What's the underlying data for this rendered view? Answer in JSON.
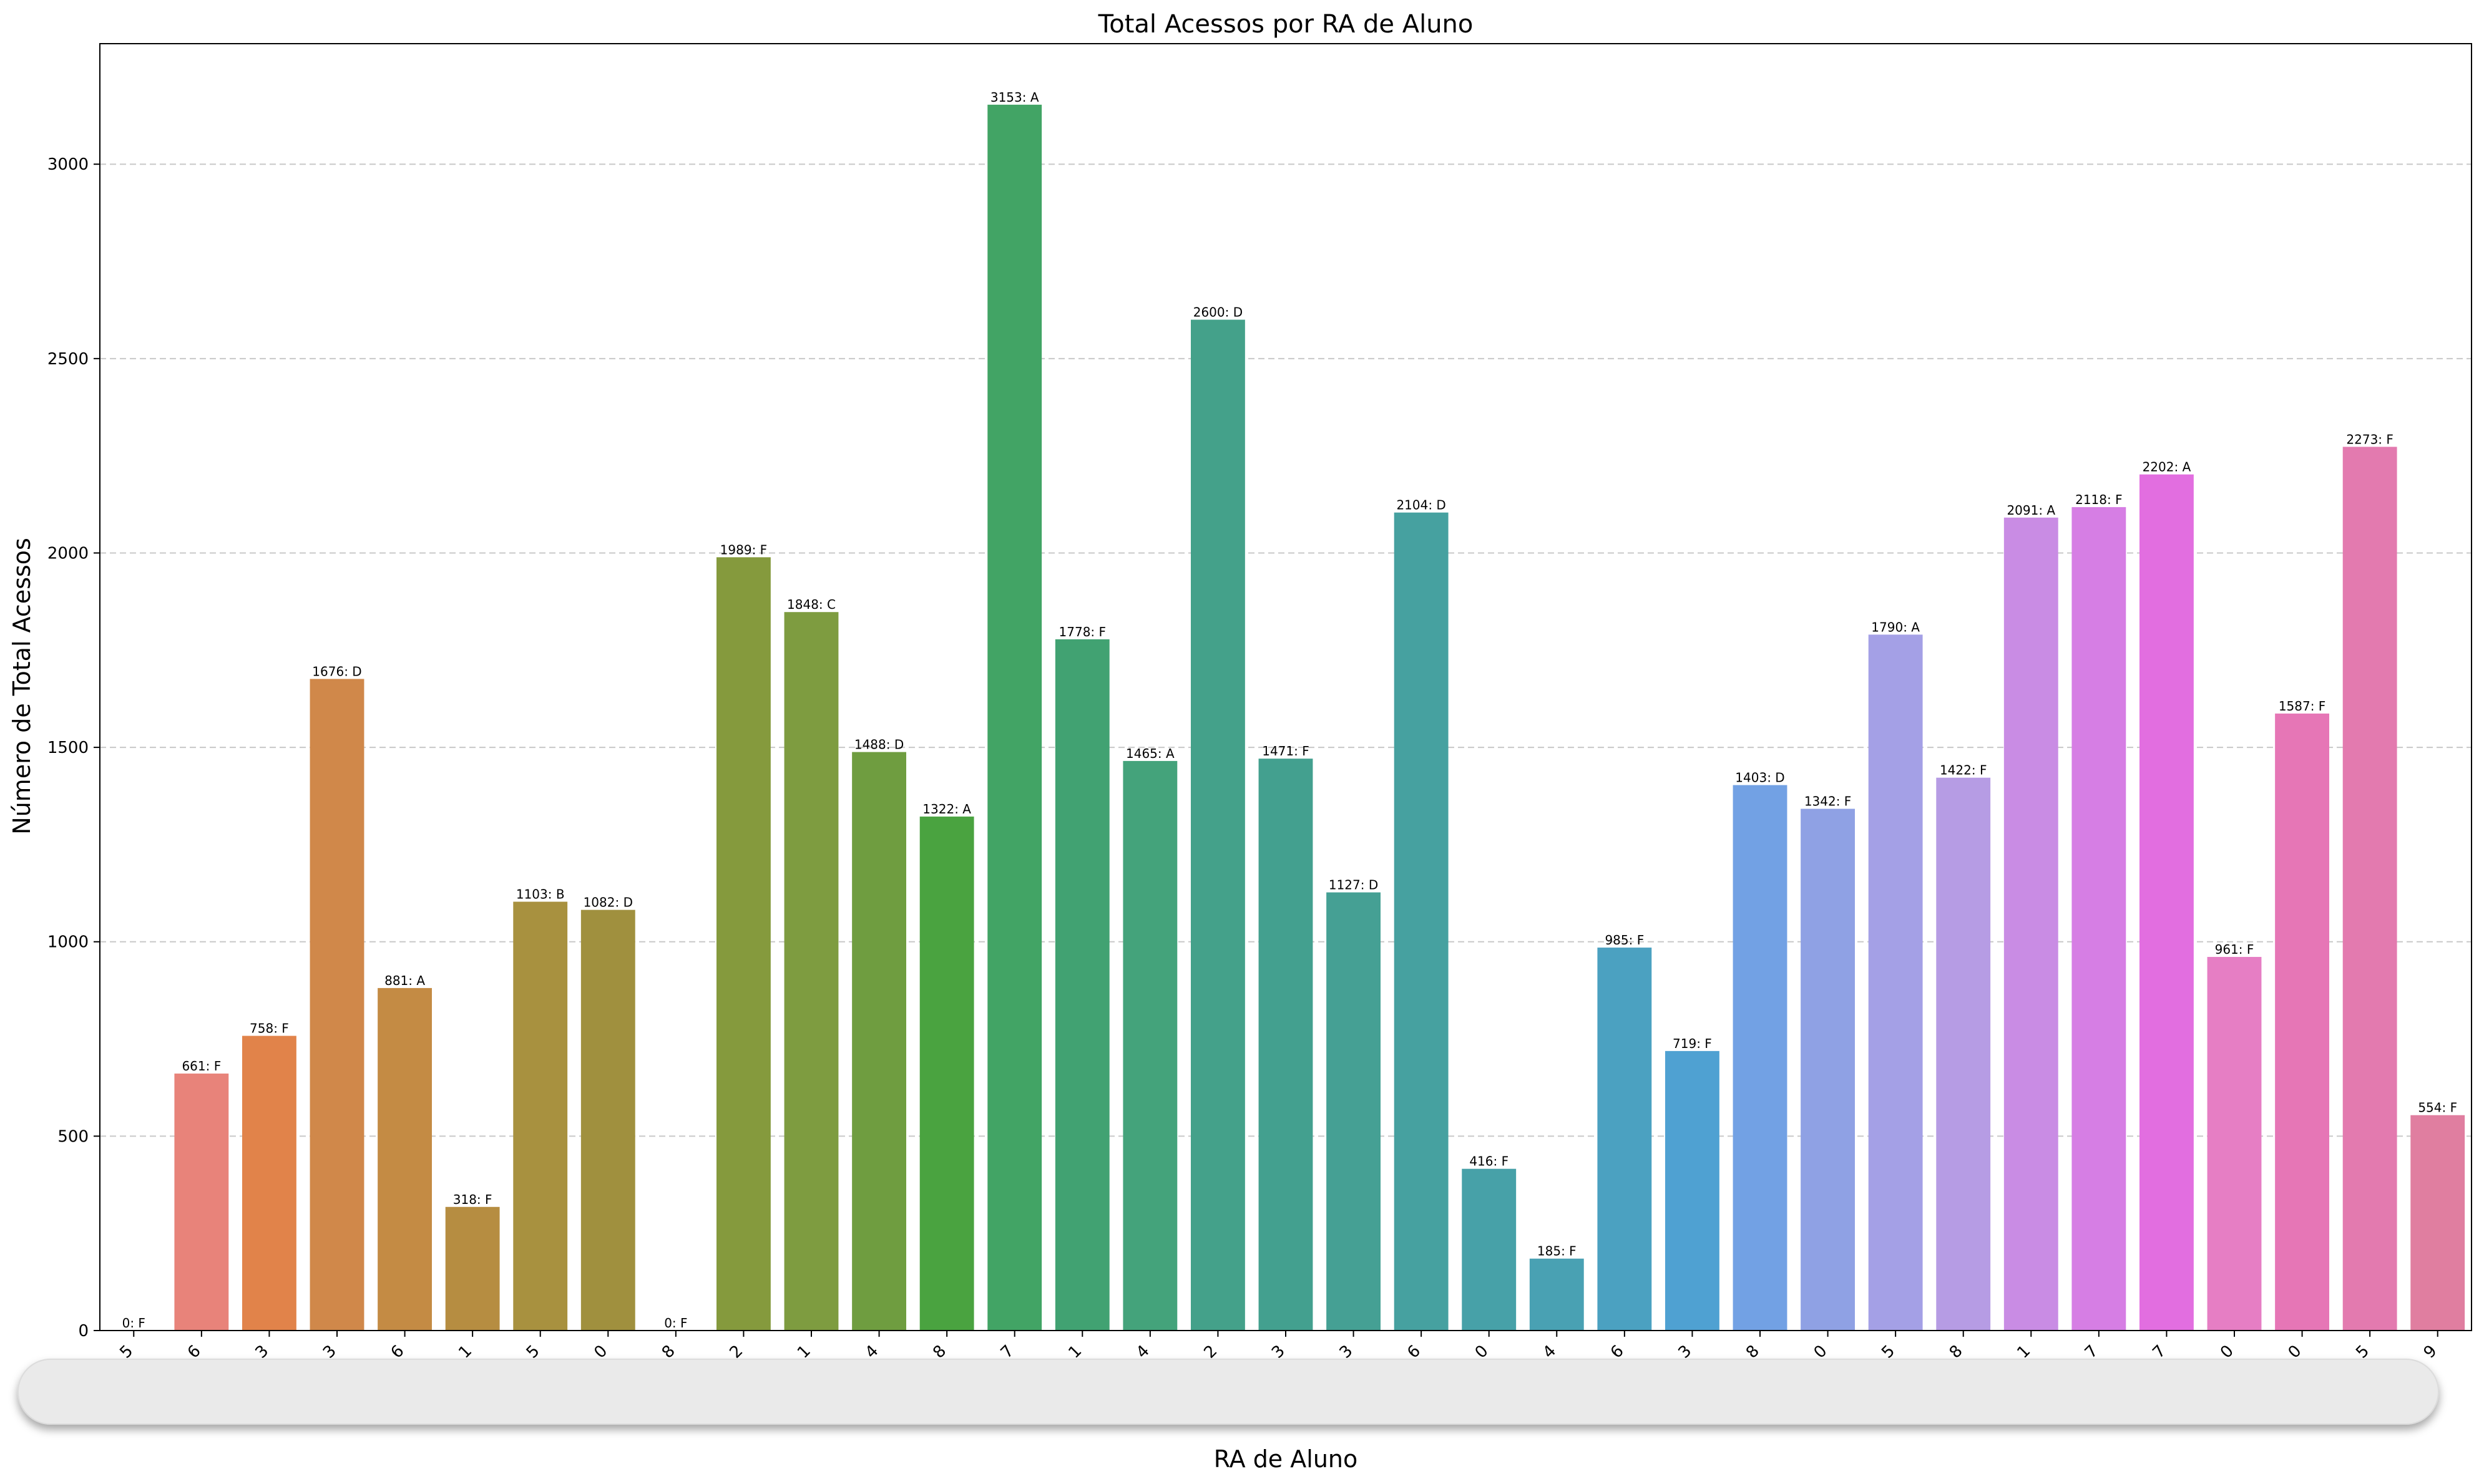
{
  "chart_data": {
    "type": "bar",
    "title": "Total Acessos por RA de Aluno",
    "xlabel": "RA de Aluno",
    "ylabel": "Número de Total Acessos",
    "ylim": [
      0,
      3310
    ],
    "yticks": [
      0,
      500,
      1000,
      1500,
      2000,
      2500,
      3000
    ],
    "grid": "y-dashed",
    "values": [
      0,
      661,
      758,
      1676,
      881,
      318,
      1103,
      1082,
      0,
      1989,
      1848,
      1488,
      1322,
      3153,
      1778,
      1465,
      2600,
      1471,
      1127,
      2104,
      416,
      185,
      985,
      719,
      1403,
      1342,
      1790,
      1422,
      2091,
      2118,
      2202,
      961,
      1587,
      2273,
      554
    ],
    "bar_labels": [
      "0: F",
      "661: F",
      "758: F",
      "1676: D",
      "881: A",
      "318: F",
      "1103: B",
      "1082: D",
      "0: F",
      "1989: F",
      "1848: C",
      "1488: D",
      "1322: A",
      "3153: A",
      "1778: F",
      "1465: A",
      "2600: D",
      "1471: F",
      "1127: D",
      "2104: D",
      "416: F",
      "185: F",
      "985: F",
      "719: F",
      "1403: D",
      "1342: F",
      "1790: A",
      "1422: F",
      "2091: A",
      "2118: F",
      "2202: A",
      "961: F",
      "1587: F",
      "2273: F",
      "554: F"
    ],
    "tick_labels_visible": [
      "5",
      "6",
      "3",
      "3",
      "6",
      "1",
      "5",
      "0",
      "8",
      "2",
      "1",
      "4",
      "8",
      "7",
      "1",
      "4",
      "2",
      "3",
      "3",
      "6",
      "0",
      "4",
      "6",
      "3",
      "8",
      "0",
      "5",
      "8",
      "1",
      "7",
      "7",
      "0",
      "0",
      "5",
      "9"
    ],
    "colors": [
      "#f77189",
      "#e8837a",
      "#e1834a",
      "#d0884a",
      "#c48b44",
      "#b68d41",
      "#a8913f",
      "#a0903e",
      "#979c3b",
      "#859a3d",
      "#7e9c40",
      "#6f9d40",
      "#4aa340",
      "#42a465",
      "#41a272",
      "#44a37b",
      "#44a18a",
      "#43a08f",
      "#45a094",
      "#46a1a0",
      "#47a1a8",
      "#49a1b3",
      "#4ba1c1",
      "#4fa1d2",
      "#72a1e4",
      "#8fa1e4",
      "#a4a0e6",
      "#b69ce4",
      "#c98ce4",
      "#d67ee4",
      "#e26ee0",
      "#e67ec4",
      "#e676b6",
      "#e37aaf",
      "#e07ea0"
    ]
  }
}
